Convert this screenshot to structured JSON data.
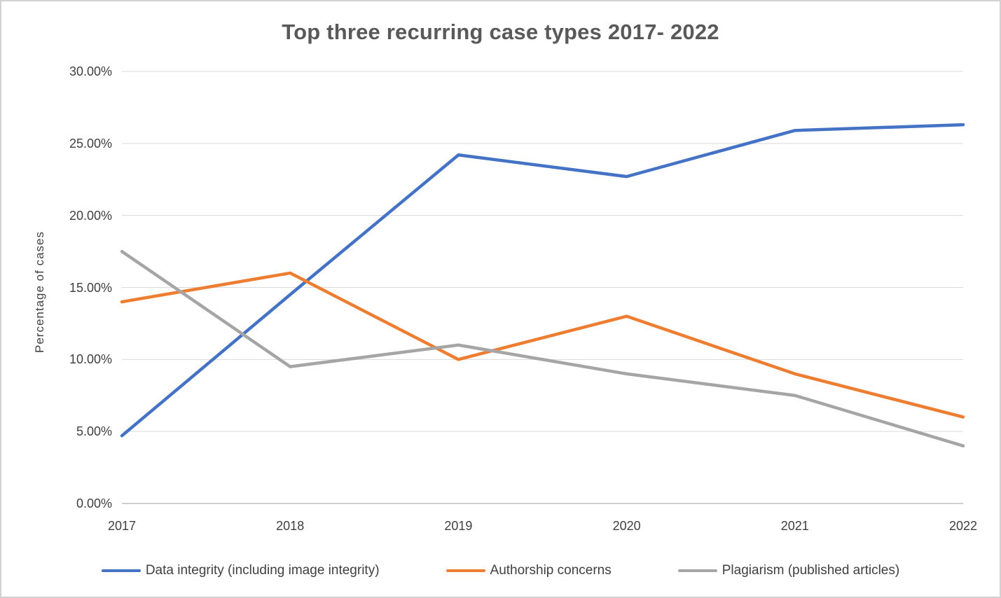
{
  "chart": {
    "title": "Top three recurring case types 2017- 2022",
    "y_axis_title": "Percentage of cases",
    "y_tick_labels": [
      "30.00%",
      "25.00%",
      "20.00%",
      "15.00%",
      "10.00%",
      "5.00%",
      "0.00%"
    ],
    "x_tick_labels": [
      "2017",
      "2018",
      "2019",
      "2020",
      "2021",
      "2022"
    ],
    "gridline_color": "#d9d9d9",
    "axis_line_color": "#bfbfbf"
  },
  "chart_data": {
    "type": "line",
    "title": "Top three recurring case types 2017- 2022",
    "xlabel": "",
    "ylabel": "Percentage of cases",
    "x": [
      2017,
      2018,
      2019,
      2020,
      2021,
      2022
    ],
    "ylim": [
      0,
      30
    ],
    "ytick_step": 5,
    "y_unit": "%",
    "grid": true,
    "legend_position": "bottom",
    "series": [
      {
        "name": "Data integrity (including image integrity)",
        "color": "#4472c4",
        "values": [
          4.7,
          14.5,
          24.2,
          22.7,
          25.9,
          26.3
        ]
      },
      {
        "name": "Authorship concerns",
        "color": "#ed7d31",
        "values": [
          14.0,
          16.0,
          10.0,
          13.0,
          9.0,
          6.0
        ]
      },
      {
        "name": "Plagiarism (published articles)",
        "color": "#a5a5a5",
        "values": [
          17.5,
          9.5,
          11.0,
          9.0,
          7.5,
          4.0
        ]
      }
    ]
  }
}
